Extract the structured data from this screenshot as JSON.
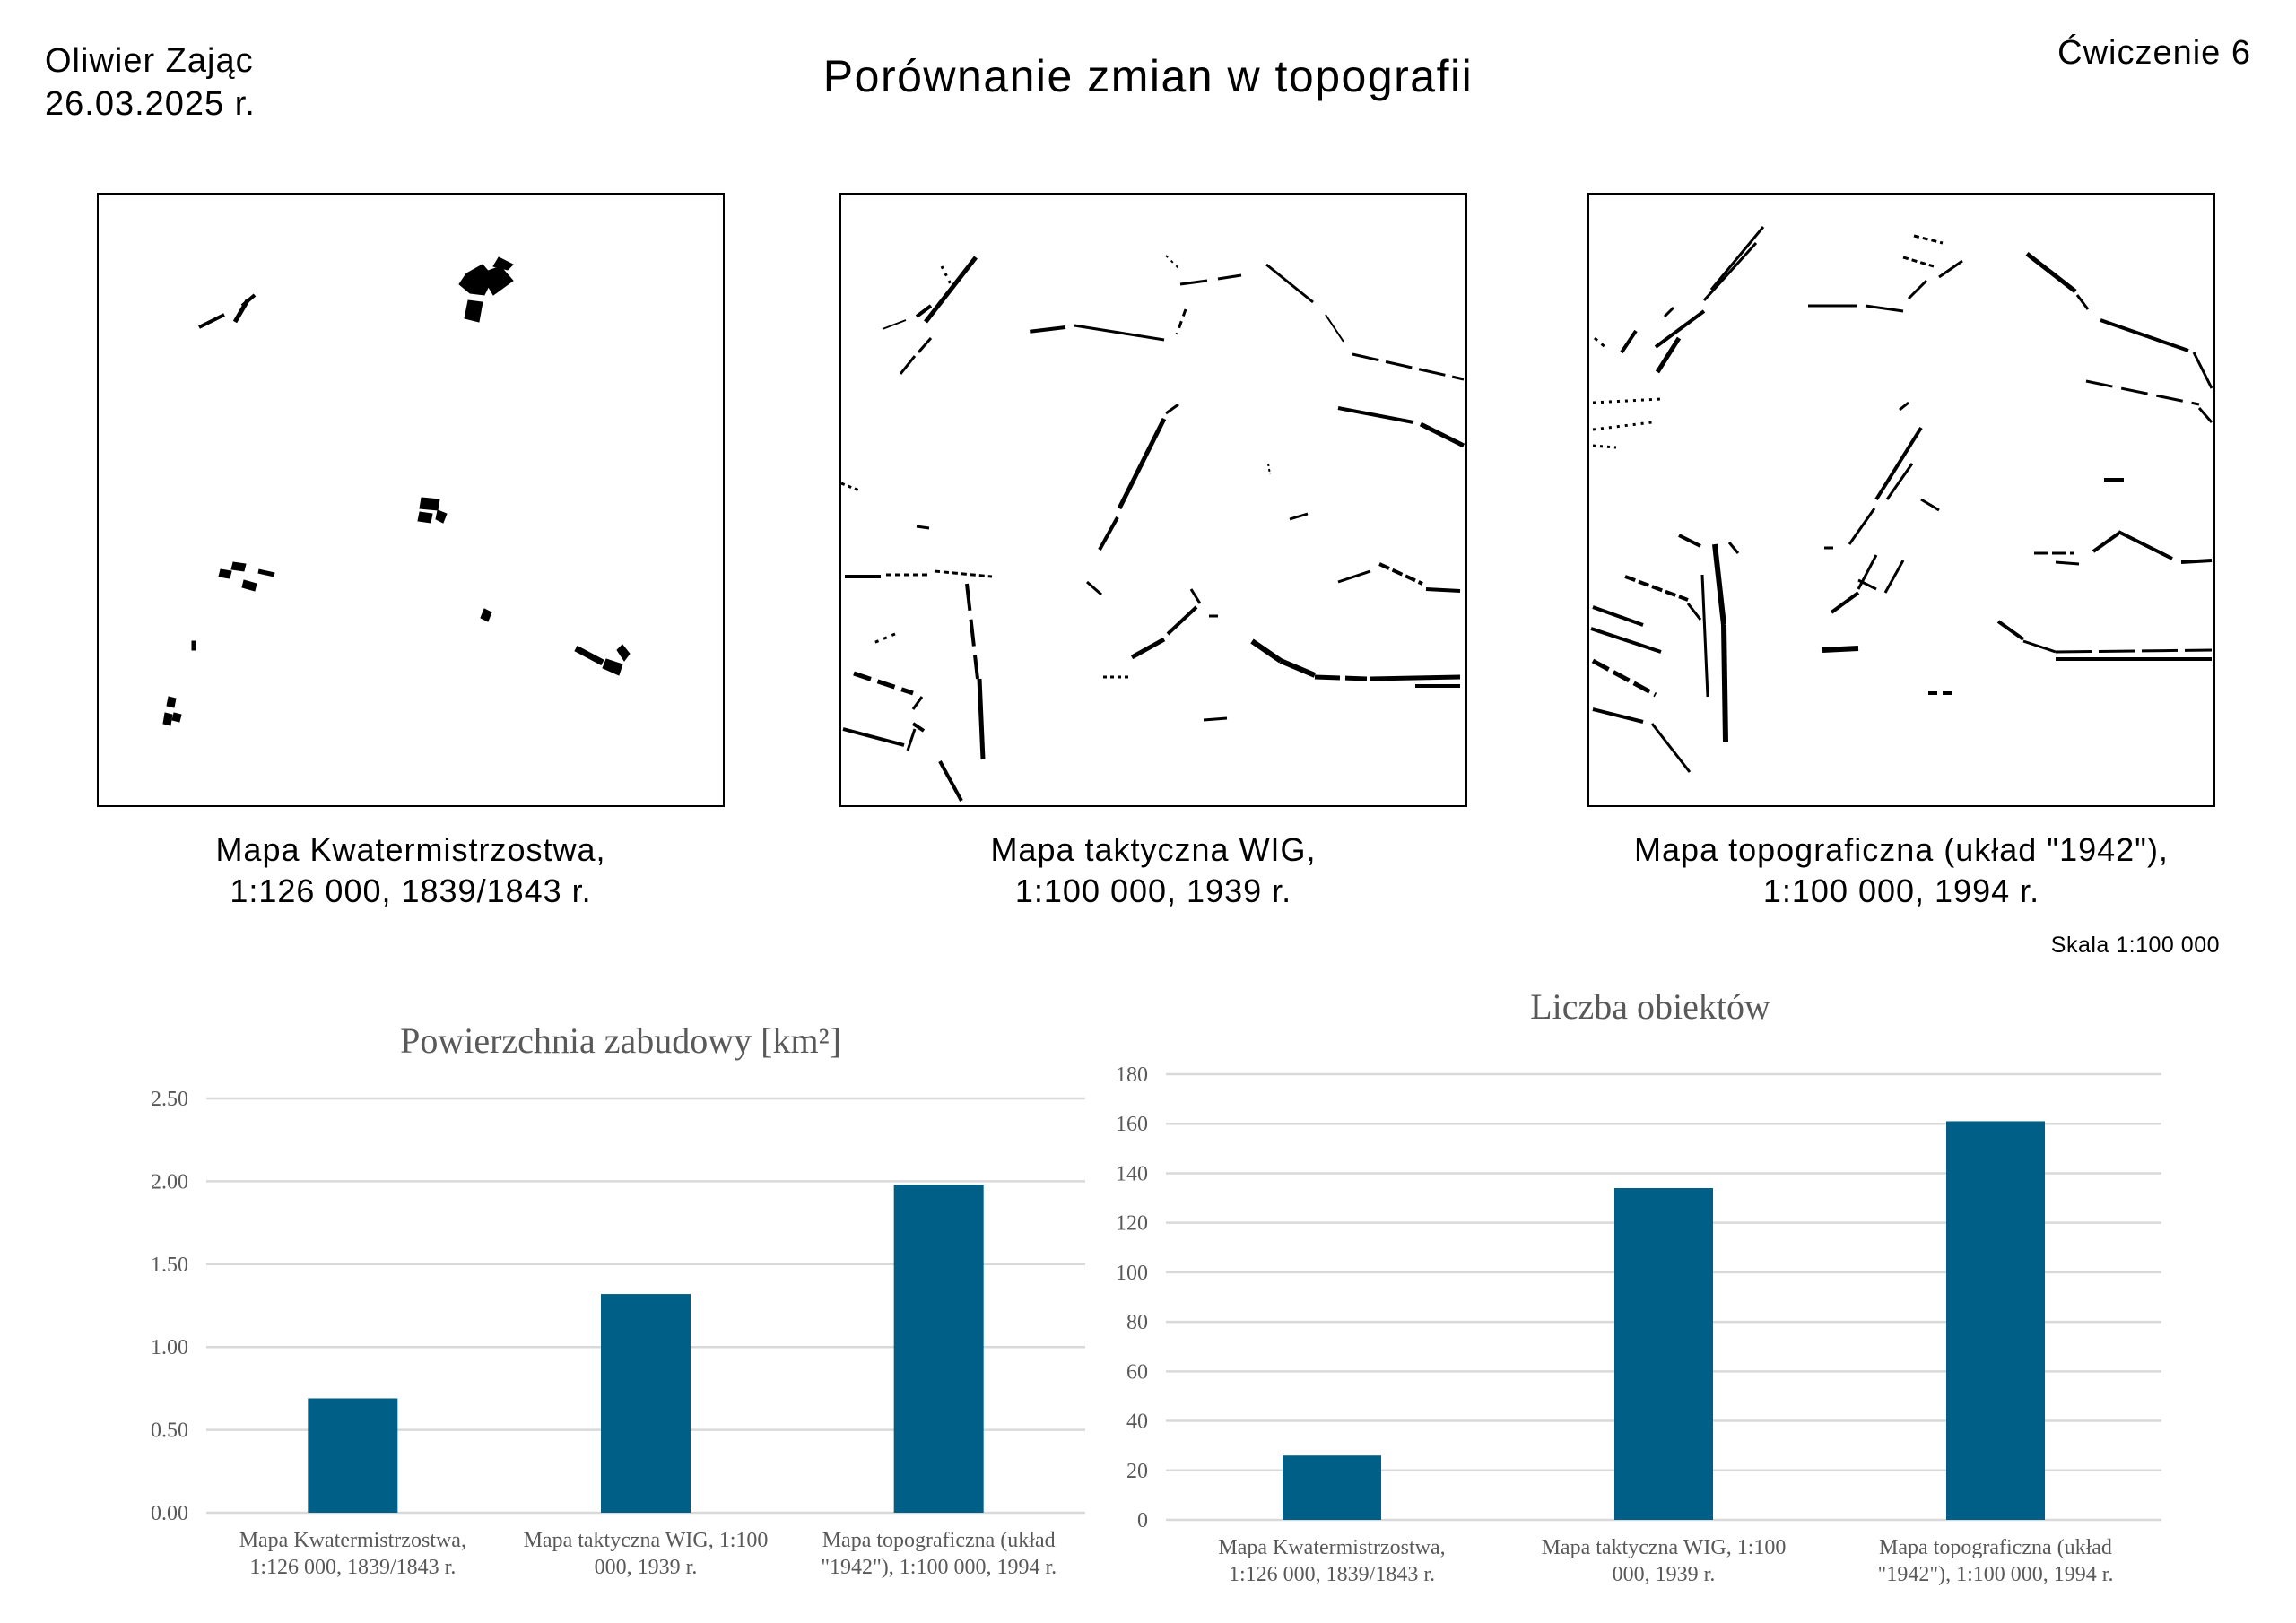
{
  "header": {
    "author": "Oliwier Zając",
    "date": "26.03.2025 r.",
    "title": "Porównanie zmian w topografii",
    "exercise": "Ćwiczenie 6"
  },
  "maps": [
    {
      "caption_line1": "Mapa Kwatermistrzostwa,",
      "caption_line2": "1:126 000, 1839/1843 r."
    },
    {
      "caption_line1": "Mapa taktyczna WIG,",
      "caption_line2": "1:100 000, 1939 r."
    },
    {
      "caption_line1": "Mapa topograficzna (układ \"1942\"),",
      "caption_line2": "1:100 000, 1994 r."
    }
  ],
  "scale_label": "Skala 1:100 000",
  "chart_data": [
    {
      "type": "bar",
      "title": "Powierzchnia zabudowy [km²]",
      "categories": [
        [
          "Mapa Kwatermistrzostwa,",
          "1:126 000, 1839/1843 r."
        ],
        [
          "Mapa taktyczna WIG, 1:100",
          "000, 1939 r."
        ],
        [
          "Mapa topograficzna (układ",
          "\"1942\"), 1:100 000, 1994 r."
        ]
      ],
      "values": [
        0.69,
        1.32,
        1.98
      ],
      "ylim": [
        0,
        2.5
      ],
      "yticks": [
        "0.00",
        "0.50",
        "1.00",
        "1.50",
        "2.00",
        "2.50"
      ],
      "grid": true,
      "color": "#005f87"
    },
    {
      "type": "bar",
      "title": "Liczba obiektów",
      "categories": [
        [
          "Mapa Kwatermistrzostwa,",
          "1:126 000, 1839/1843 r."
        ],
        [
          "Mapa taktyczna WIG, 1:100",
          "000, 1939 r."
        ],
        [
          "Mapa topograficzna (układ",
          "\"1942\"), 1:100 000, 1994 r."
        ]
      ],
      "values": [
        26,
        134,
        161
      ],
      "ylim": [
        0,
        180
      ],
      "yticks": [
        "0",
        "20",
        "40",
        "60",
        "80",
        "100",
        "120",
        "140",
        "160",
        "180"
      ],
      "grid": true,
      "color": "#005f87"
    }
  ]
}
